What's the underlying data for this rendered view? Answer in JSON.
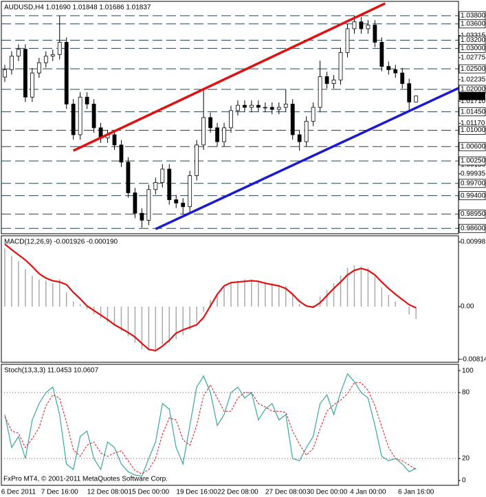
{
  "chart_data": [
    {
      "type": "candlestick",
      "title": "AUDUSD,H4  1.01690 1.01848 1.01686 1.01837",
      "categories": [
        null,
        null,
        "6 Dec 2011",
        null,
        null,
        null,
        null,
        null,
        "7 Dec 16:00",
        null,
        null,
        null,
        null,
        null,
        null,
        "12 Dec 08:00",
        null,
        null,
        null,
        null,
        null,
        "15 Dec 00:00",
        null,
        null,
        null,
        null,
        null,
        null,
        "19 Dec 16:00",
        null,
        null,
        null,
        null,
        null,
        "22 Dec 08:00",
        null,
        null,
        null,
        null,
        null,
        null,
        "27 Dec 08:00",
        null,
        null,
        null,
        null,
        null,
        "30 Dec 00:00",
        null,
        null,
        null,
        null,
        null,
        "4 Jan 00:00",
        null,
        null,
        null,
        null,
        null,
        null,
        "6 Jan 16:00"
      ],
      "open": [
        1.023,
        1.0248,
        1.0281,
        1.0298,
        1.0181,
        1.024,
        1.0265,
        1.0281,
        1.0285,
        1.0315,
        1.0164,
        1.0089,
        1.0181,
        1.0164,
        1.0106,
        1.0081,
        1.0089,
        1.0064,
        1.0022,
        0.9947,
        0.9897,
        0.988,
        0.9955,
        0.9972,
        1.0005,
        0.993,
        0.9922,
        0.9913,
        0.9989,
        1.0064,
        1.0131,
        1.0106,
        1.0072,
        1.0106,
        1.0148,
        1.0161,
        1.0156,
        1.0161,
        1.0156,
        1.0156,
        1.0151,
        1.0156,
        1.0164,
        1.0089,
        1.0072,
        1.0122,
        1.0156,
        1.0231,
        1.0214,
        1.0223,
        1.029,
        1.0348,
        1.0365,
        1.0348,
        1.0357,
        1.0315,
        1.0256,
        1.0248,
        1.024,
        1.0214,
        1.0169
      ],
      "high": [
        1.026,
        1.0293,
        1.031,
        1.031,
        1.0252,
        1.0277,
        1.0293,
        1.0297,
        1.038,
        1.0327,
        1.0176,
        1.0193,
        1.0193,
        1.0176,
        1.0118,
        1.0101,
        1.0101,
        1.0076,
        1.0034,
        0.9959,
        0.9909,
        0.9967,
        0.9984,
        1.0017,
        1.0017,
        0.9942,
        0.9934,
        1.0001,
        1.0076,
        1.02,
        1.0143,
        1.0118,
        1.0118,
        1.016,
        1.0173,
        1.0173,
        1.0173,
        1.0173,
        1.0168,
        1.0168,
        1.0168,
        1.02,
        1.0176,
        1.0101,
        1.0134,
        1.0168,
        1.027,
        1.0243,
        1.0235,
        1.0302,
        1.036,
        1.038,
        1.0377,
        1.0369,
        1.0369,
        1.0327,
        1.0268,
        1.026,
        1.0252,
        1.0226,
        1.01848
      ],
      "low": [
        1.0218,
        1.0236,
        1.0269,
        1.0169,
        1.0169,
        1.0228,
        1.0253,
        1.0269,
        1.0273,
        1.0152,
        1.0077,
        1.0077,
        1.0152,
        1.0094,
        1.0069,
        1.0069,
        1.0052,
        1.001,
        0.9935,
        0.9885,
        0.9862,
        0.9868,
        0.9943,
        0.996,
        0.9918,
        0.991,
        0.9895,
        0.9901,
        0.9977,
        1.0052,
        1.0094,
        1.006,
        1.006,
        1.0094,
        1.0136,
        1.0144,
        1.0144,
        1.0144,
        1.0144,
        1.0139,
        1.0139,
        1.0144,
        1.0077,
        1.005,
        1.006,
        1.011,
        1.0144,
        1.0202,
        1.0202,
        1.0211,
        1.0278,
        1.0336,
        1.0336,
        1.0336,
        1.0303,
        1.0244,
        1.0236,
        1.0228,
        1.0202,
        1.015,
        1.01686
      ],
      "close": [
        1.0248,
        1.0281,
        1.0298,
        1.0181,
        1.024,
        1.0265,
        1.0281,
        1.0285,
        1.0315,
        1.0164,
        1.0089,
        1.0181,
        1.0164,
        1.0106,
        1.0081,
        1.0089,
        1.0064,
        1.0022,
        0.9947,
        0.9897,
        0.988,
        0.9955,
        0.9972,
        1.0005,
        0.993,
        0.9922,
        0.9913,
        0.9989,
        1.0064,
        1.0131,
        1.0106,
        1.0072,
        1.0106,
        1.0148,
        1.0161,
        1.0156,
        1.0161,
        1.0156,
        1.0156,
        1.0151,
        1.0156,
        1.0164,
        1.0089,
        1.0072,
        1.0122,
        1.0156,
        1.0231,
        1.0214,
        1.0223,
        1.029,
        1.0348,
        1.0365,
        1.0348,
        1.0357,
        1.0315,
        1.0256,
        1.0248,
        1.024,
        1.0214,
        1.0169,
        1.01837
      ],
      "up_color": "#ffffff",
      "down_color": "#000000",
      "xlim": [
        -0.5,
        66.2
      ],
      "ylim": [
        0.9847,
        1.0415
      ],
      "yticks": [
        {
          "value": 1.03315,
          "label": "1.03315"
        },
        {
          "value": 1.02775,
          "label": "1.02775"
        },
        {
          "value": 1.02235,
          "label": "1.02235"
        },
        {
          "value": 1.0171,
          "label": "1.01710"
        },
        {
          "value": 1.0117,
          "label": "1.01170"
        },
        {
          "value": 1.0015,
          "label": "1.00150"
        },
        {
          "value": 0.99935,
          "label": "0.99935"
        },
        {
          "value": 0.98935,
          "label": "0.98935"
        }
      ],
      "levels": [
        {
          "value": 1.038,
          "label": "1.03800"
        },
        {
          "value": 1.036,
          "label": "1.03600"
        },
        {
          "value": 1.032,
          "label": "1.03200"
        },
        {
          "value": 1.03,
          "label": "1.03000"
        },
        {
          "value": 1.025,
          "label": "1.02500"
        },
        {
          "value": 1.02,
          "label": "1.02000"
        },
        {
          "value": 1.0145,
          "label": "1.01450"
        },
        {
          "value": 1.01,
          "label": "1.01000"
        },
        {
          "value": 1.006,
          "label": "1.00600"
        },
        {
          "value": 1.0025,
          "label": "1.00250"
        },
        {
          "value": 0.997,
          "label": "0.99700"
        },
        {
          "value": 0.994,
          "label": "0.99400"
        },
        {
          "value": 0.9895,
          "label": "0.98950"
        },
        {
          "value": 0.986,
          "label": "0.98600"
        }
      ],
      "trendlines": [
        {
          "color": "#e01010",
          "x": [
            10,
            55.5
          ],
          "y": [
            1.005,
            1.041
          ]
        },
        {
          "color": "#1a1ad0",
          "x": [
            22,
            66.2
          ],
          "y": [
            0.98584,
            1.0203
          ]
        }
      ]
    },
    {
      "type": "macd",
      "title": "MACD(12,26,9) -0.001926 -0.000190",
      "values": [
        0.009,
        0.0078,
        0.007,
        0.0058,
        0.0048,
        0.0042,
        0.004,
        0.0036,
        0.0042,
        0.0022,
        0.0008,
        0.0004,
        -0.0004,
        -0.0012,
        -0.0018,
        -0.0024,
        -0.003,
        -0.0038,
        -0.0046,
        -0.0056,
        -0.0066,
        -0.0068,
        -0.0066,
        -0.0058,
        -0.0056,
        -0.005,
        -0.0044,
        -0.0036,
        -0.0024,
        -0.0008,
        0.001,
        0.002,
        0.003,
        0.0036,
        0.004,
        0.0042,
        0.0042,
        0.004,
        0.0038,
        0.0036,
        0.0034,
        0.0032,
        0.0018,
        0.0004,
        0.0,
        0.0002,
        0.0016,
        0.0026,
        0.0036,
        0.0048,
        0.006,
        0.0064,
        0.0062,
        0.006,
        0.0046,
        0.003,
        0.0018,
        0.0008,
        0.0,
        -0.0012,
        -0.001926
      ],
      "signal": [
        0.00966,
        0.0088,
        0.008,
        0.0072,
        0.0062,
        0.0051,
        0.0044,
        0.004,
        0.0038,
        0.0034,
        0.0022,
        0.0012,
        0.0001,
        -0.0006,
        -0.0013,
        -0.002,
        -0.0028,
        -0.0034,
        -0.004,
        -0.0047,
        -0.0057,
        -0.0066,
        -0.0068,
        -0.0061,
        -0.0052,
        -0.0041,
        -0.0036,
        -0.0032,
        -0.0028,
        -0.0017,
        0.0001,
        0.0019,
        0.0032,
        0.0037,
        0.0038,
        0.0039,
        0.004,
        0.0039,
        0.0036,
        0.0034,
        0.0032,
        0.0028,
        0.0019,
        0.0008,
        0.0001,
        -0.0001,
        0.0006,
        0.0017,
        0.0028,
        0.0038,
        0.0049,
        0.0056,
        0.0059,
        0.0056,
        0.0049,
        0.0038,
        0.0028,
        0.0019,
        0.0011,
        0.0003,
        -0.00019
      ],
      "color": "#a8a8a8",
      "signal_color": "#e01010",
      "ylim": [
        -0.0086,
        0.01094
      ],
      "yticks": [
        0.00998,
        {
          "value": 0,
          "label": "0.00"
        },
        -0.00814
      ]
    },
    {
      "type": "stochastic",
      "title": "Stoch(13,3,3) 11.0453 10.0607",
      "values": [
        60,
        30,
        40,
        20,
        55,
        70,
        80,
        85,
        60,
        15,
        10,
        40,
        45,
        20,
        10,
        35,
        30,
        15,
        8,
        5,
        4,
        20,
        35,
        70,
        65,
        30,
        15,
        50,
        85,
        95,
        80,
        50,
        60,
        80,
        85,
        75,
        80,
        55,
        65,
        70,
        55,
        60,
        20,
        18,
        30,
        40,
        70,
        78,
        60,
        80,
        97,
        90,
        80,
        75,
        50,
        22,
        18,
        20,
        15,
        8,
        11.0453
      ],
      "signal": [
        58,
        45,
        43,
        30,
        38,
        48,
        68,
        78,
        75,
        53,
        28,
        22,
        32,
        35,
        25,
        22,
        25,
        27,
        18,
        9,
        6,
        10,
        20,
        42,
        57,
        55,
        37,
        32,
        50,
        77,
        87,
        75,
        63,
        63,
        75,
        80,
        80,
        70,
        67,
        63,
        63,
        62,
        45,
        33,
        23,
        29,
        47,
        63,
        69,
        73,
        79,
        89,
        89,
        82,
        68,
        49,
        30,
        20,
        18,
        14,
        10.0607
      ],
      "color": "#38a89c",
      "signal_color": "#e01010",
      "ylim": [
        -4.4,
        105.7
      ],
      "yticks": [
        100,
        80,
        20,
        0
      ],
      "levels": [
        80,
        20
      ]
    }
  ],
  "footer": "FxPro MT4, © 2001-2011 MetaQuotes Software Corp."
}
